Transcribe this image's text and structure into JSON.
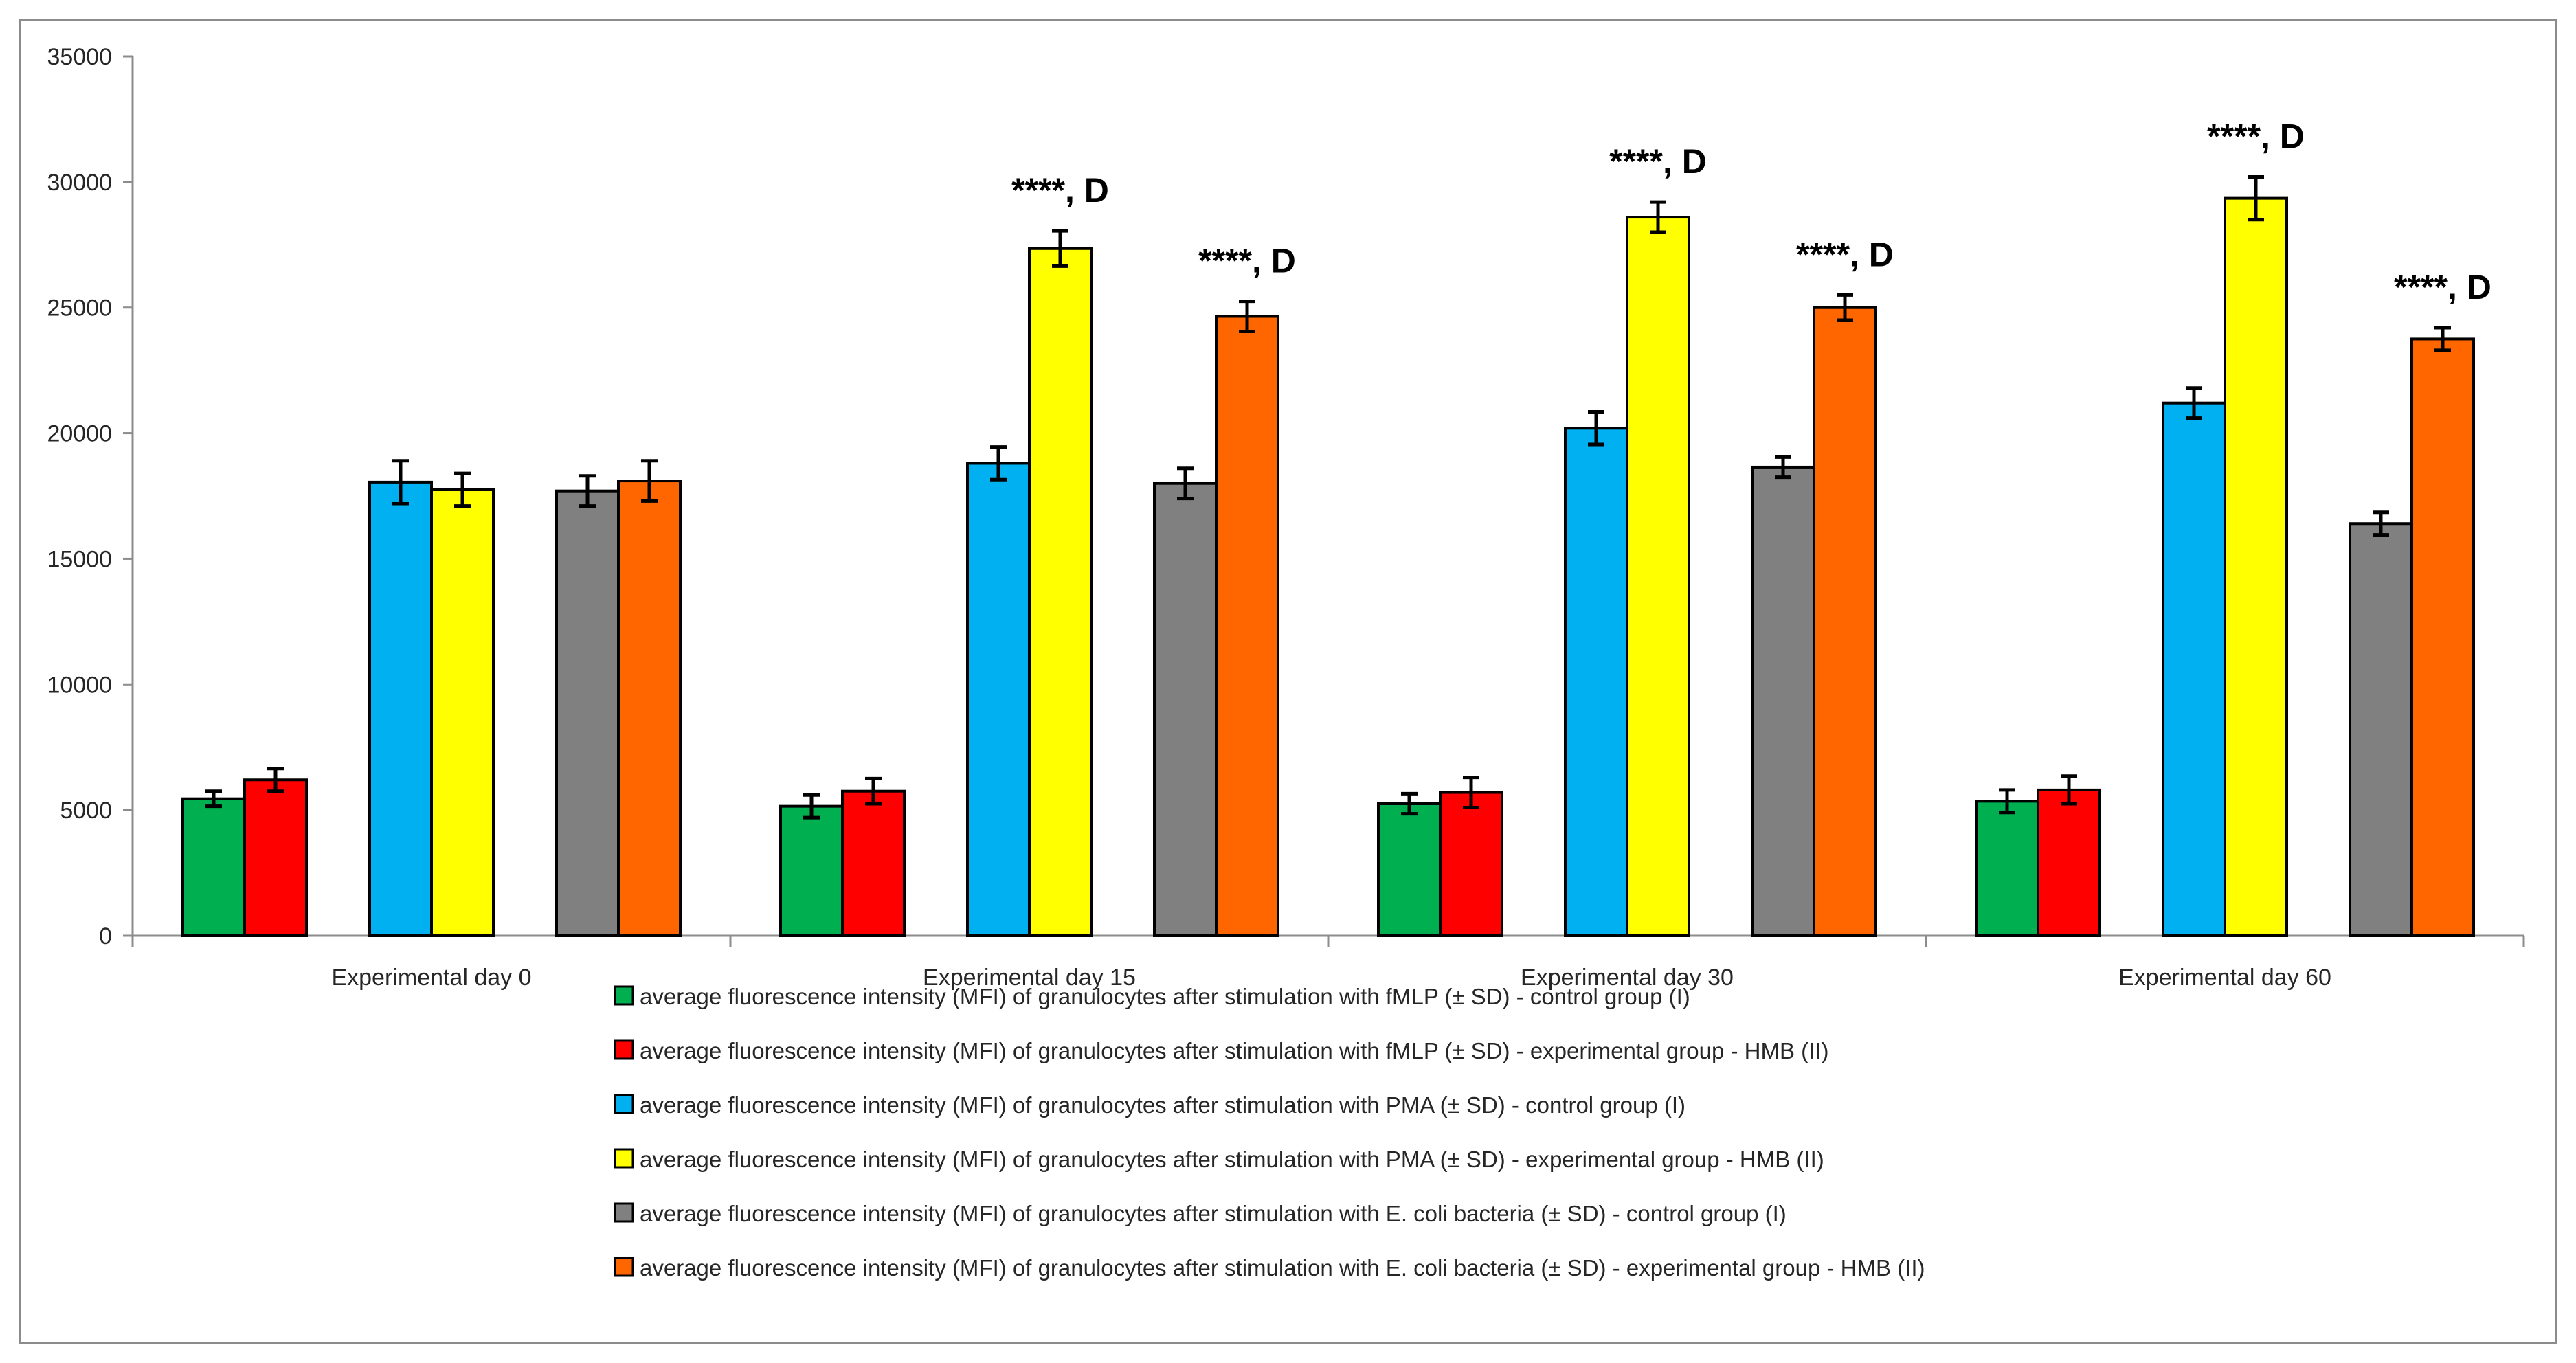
{
  "chart_data": {
    "type": "bar",
    "title": "",
    "xlabel": "",
    "ylabel": "",
    "ylim": [
      0,
      35000
    ],
    "yticks": [
      0,
      5000,
      10000,
      15000,
      20000,
      25000,
      30000,
      35000
    ],
    "grid": false,
    "legend_position": "bottom",
    "categories": [
      "Experimental day 0",
      "Experimental day 15",
      "Experimental day 30",
      "Experimental day 60"
    ],
    "series": [
      {
        "name": "average fluorescence intensity (MFI) of granulocytes after stimulation with fMLP (± SD) - control group (I)",
        "color": "#00b050",
        "values": [
          5450,
          5150,
          5250,
          5350
        ],
        "errors": [
          300,
          450,
          400,
          450
        ],
        "annotations": [
          "",
          "",
          "",
          ""
        ]
      },
      {
        "name": "average fluorescence intensity (MFI) of granulocytes after stimulation with fMLP (± SD) - experimental group - HMB (II)",
        "color": "#ff0000",
        "values": [
          6200,
          5750,
          5700,
          5800
        ],
        "errors": [
          450,
          500,
          600,
          550
        ],
        "annotations": [
          "",
          "",
          "",
          ""
        ]
      },
      {
        "name": "average fluorescence intensity (MFI) of granulocytes after stimulation with PMA (± SD) - control group (I)",
        "color": "#00b0f0",
        "values": [
          18050,
          18800,
          20200,
          21200
        ],
        "errors": [
          850,
          650,
          650,
          600
        ],
        "annotations": [
          "",
          "",
          "",
          ""
        ]
      },
      {
        "name": "average fluorescence intensity (MFI) of granulocytes after stimulation with PMA (± SD) - experimental group - HMB (II)",
        "color": "#ffff00",
        "values": [
          17750,
          27350,
          28600,
          29350
        ],
        "errors": [
          650,
          700,
          600,
          850
        ],
        "annotations": [
          "",
          "****, D",
          "****, D",
          "****, D"
        ]
      },
      {
        "name": "average fluorescence intensity (MFI) of granulocytes after stimulation with E. coli bacteria (± SD) - control group (I)",
        "color": "#808080",
        "values": [
          17700,
          18000,
          18650,
          16400
        ],
        "errors": [
          600,
          600,
          400,
          450
        ],
        "annotations": [
          "",
          "",
          "",
          ""
        ]
      },
      {
        "name": "average fluorescence intensity (MFI) of granulocytes after stimulation with E. coli bacteria (± SD) - experimental group - HMB (II)",
        "color": "#ff6600",
        "values": [
          18100,
          24650,
          25000,
          23750
        ],
        "errors": [
          800,
          600,
          500,
          450
        ],
        "annotations": [
          "",
          "****, D",
          "****, D",
          "****, D"
        ]
      }
    ]
  }
}
